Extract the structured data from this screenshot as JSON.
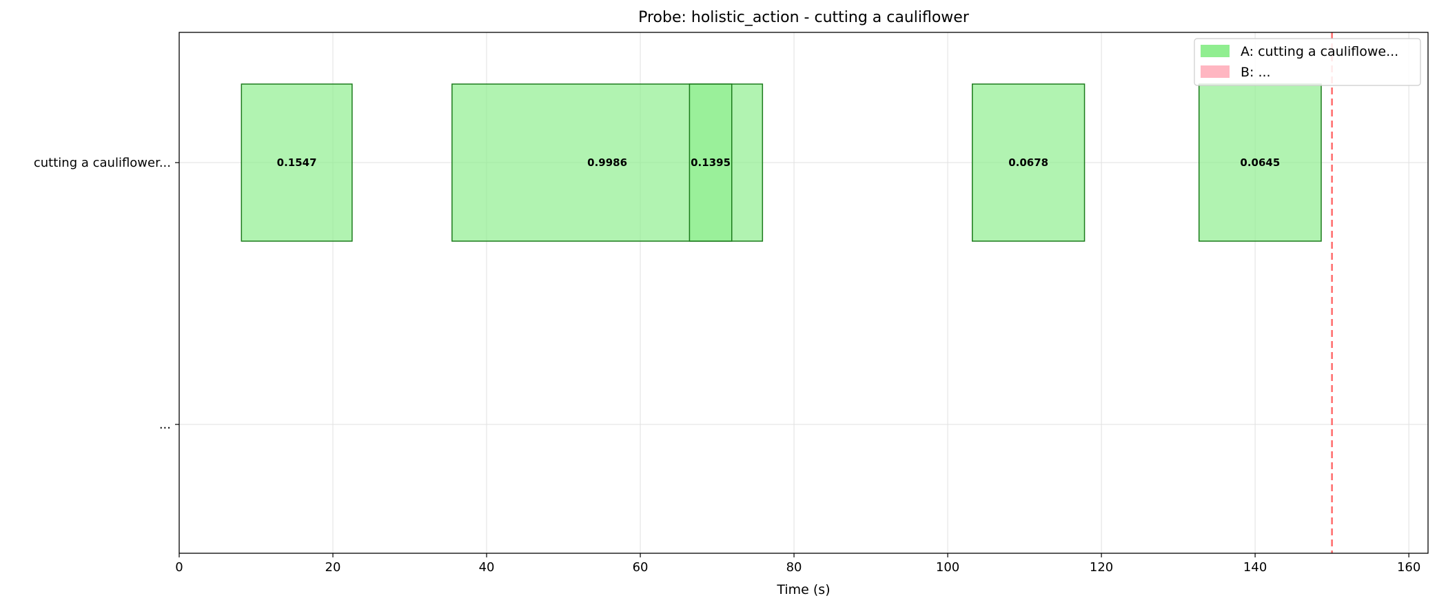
{
  "chart_data": {
    "type": "gantt",
    "title": "Probe: holistic_action - cutting a cauliflower",
    "xlabel": "Time (s)",
    "ylabel": "",
    "xlim": [
      0,
      162.5
    ],
    "x_ticks": [
      0,
      20,
      40,
      60,
      80,
      100,
      120,
      140,
      160
    ],
    "rows": [
      "cutting a cauliflower...",
      "..."
    ],
    "grid": true,
    "legend_position": "top-right",
    "legend": [
      {
        "label": "A: cutting a cauliflowe...",
        "color": "#90ee90"
      },
      {
        "label": "B: ...",
        "color": "#ffb6c1"
      }
    ],
    "segments": [
      {
        "row": 0,
        "start": 8.1,
        "end": 22.5,
        "score": "0.1547"
      },
      {
        "row": 0,
        "start": 35.5,
        "end": 75.9,
        "score": "0.9986"
      },
      {
        "row": 0,
        "start": 66.4,
        "end": 71.9,
        "score": "0.1395"
      },
      {
        "row": 0,
        "start": 103.2,
        "end": 117.8,
        "score": "0.0678"
      },
      {
        "row": 0,
        "start": 132.7,
        "end": 148.6,
        "score": "0.0645"
      }
    ],
    "vline": {
      "x": 150,
      "color": "#ff6b6b",
      "style": "dashed"
    },
    "colors": {
      "bar_fill": "#90ee90",
      "bar_edge": "#1a7a1a",
      "grid": "#e0e0e0"
    }
  }
}
